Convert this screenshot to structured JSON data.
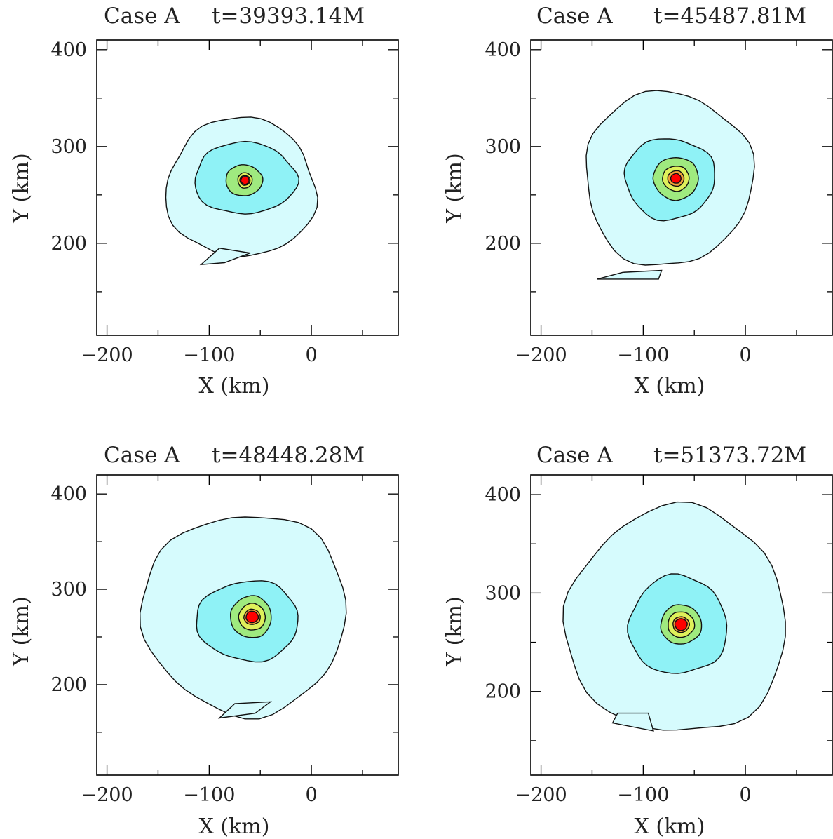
{
  "colors": {
    "level1": "#d6fbfd",
    "level2": "#8ff2f6",
    "level3": "#9fea7f",
    "level4": "#dff05a",
    "level5": "#f0a13a",
    "core": "#ff0000",
    "contour_line": "#111111"
  },
  "chart_data": [
    {
      "type": "contour",
      "panel": "top-left",
      "title_case": "Case A",
      "title_time": "t=39393.14M",
      "xlabel": "X (km)",
      "ylabel": "Y (km)",
      "xlim": [
        -210,
        85
      ],
      "ylim": [
        105,
        410
      ],
      "xticks": [
        -200,
        -100,
        0
      ],
      "yticks": [
        200,
        300,
        400
      ],
      "center": [
        -65,
        265
      ],
      "layers": [
        {
          "level": 1,
          "rx": 73,
          "ry": 72,
          "dx": -4,
          "dy": -8
        },
        {
          "level": 2,
          "rx": 50,
          "ry": 37,
          "dx": 0,
          "dy": 2
        },
        {
          "level": 3,
          "rx": 18,
          "ry": 16,
          "dx": -1,
          "dy": 0
        },
        {
          "level": 4,
          "rx": 7,
          "ry": 8,
          "dx": 0,
          "dy": 0
        },
        {
          "level": 5,
          "rx": 5,
          "ry": 5,
          "dx": 0,
          "dy": 0
        },
        {
          "level": 6,
          "rx": 4,
          "ry": 4,
          "dx": 0,
          "dy": 0
        }
      ],
      "tail": [
        [
          -108,
          178
        ],
        [
          -85,
          180
        ],
        [
          -60,
          190
        ],
        [
          -90,
          195
        ]
      ]
    },
    {
      "type": "contour",
      "panel": "top-right",
      "title_case": "Case A",
      "title_time": "t=45487.81M",
      "xlabel": "X (km)",
      "ylabel": "Y (km)",
      "xlim": [
        -210,
        85
      ],
      "ylim": [
        105,
        410
      ],
      "xticks": [
        -200,
        -100,
        0
      ],
      "yticks": [
        200,
        300,
        400
      ],
      "center": [
        -68,
        267
      ],
      "layers": [
        {
          "level": 1,
          "rx": 82,
          "ry": 90,
          "dx": -8,
          "dy": 0
        },
        {
          "level": 2,
          "rx": 44,
          "ry": 42,
          "dx": -6,
          "dy": 0
        },
        {
          "level": 3,
          "rx": 22,
          "ry": 22,
          "dx": 0,
          "dy": 0
        },
        {
          "level": 4,
          "rx": 13,
          "ry": 13,
          "dx": 0,
          "dy": 0
        },
        {
          "level": 5,
          "rx": 8,
          "ry": 8,
          "dx": 0,
          "dy": 0
        },
        {
          "level": 6,
          "rx": 5,
          "ry": 5,
          "dx": 0,
          "dy": 0
        }
      ],
      "tail": [
        [
          -145,
          163
        ],
        [
          -85,
          163
        ],
        [
          -82,
          172
        ],
        [
          -120,
          170
        ]
      ]
    },
    {
      "type": "contour",
      "panel": "bottom-left",
      "title_case": "Case A",
      "title_time": "t=48448.28M",
      "xlabel": "X (km)",
      "ylabel": "Y (km)",
      "xlim": [
        -210,
        85
      ],
      "ylim": [
        105,
        420
      ],
      "xticks": [
        -200,
        -100,
        0
      ],
      "yticks": [
        200,
        300,
        400
      ],
      "center": [
        -58,
        271
      ],
      "layers": [
        {
          "level": 1,
          "rx": 100,
          "ry": 105,
          "dx": -7,
          "dy": 4
        },
        {
          "level": 2,
          "rx": 50,
          "ry": 42,
          "dx": -4,
          "dy": -4
        },
        {
          "level": 3,
          "rx": 20,
          "ry": 22,
          "dx": -1,
          "dy": 0
        },
        {
          "level": 4,
          "rx": 13,
          "ry": 14,
          "dx": 0,
          "dy": 0
        },
        {
          "level": 5,
          "rx": 8,
          "ry": 8,
          "dx": 0,
          "dy": 0
        },
        {
          "level": 6,
          "rx": 6,
          "ry": 6,
          "dx": 0,
          "dy": 0
        }
      ],
      "tail": [
        [
          -90,
          165
        ],
        [
          -55,
          170
        ],
        [
          -40,
          182
        ],
        [
          -75,
          180
        ]
      ]
    },
    {
      "type": "contour",
      "panel": "bottom-right",
      "title_case": "Case A",
      "title_time": "t=51373.72M",
      "xlabel": "X (km)",
      "ylabel": "Y (km)",
      "xlim": [
        -210,
        85
      ],
      "ylim": [
        115,
        420
      ],
      "xticks": [
        -200,
        -100,
        0
      ],
      "yticks": [
        200,
        300,
        400
      ],
      "center": [
        -63,
        268
      ],
      "layers": [
        {
          "level": 1,
          "rx": 108,
          "ry": 115,
          "dx": -4,
          "dy": 3
        },
        {
          "level": 2,
          "rx": 48,
          "ry": 50,
          "dx": -3,
          "dy": -1
        },
        {
          "level": 3,
          "rx": 20,
          "ry": 20,
          "dx": 0,
          "dy": 0
        },
        {
          "level": 4,
          "rx": 13,
          "ry": 13,
          "dx": 0,
          "dy": 0
        },
        {
          "level": 5,
          "rx": 8,
          "ry": 8,
          "dx": 0,
          "dy": 0
        },
        {
          "level": 6,
          "rx": 6,
          "ry": 6,
          "dx": 0,
          "dy": 0
        }
      ],
      "tail": [
        [
          -130,
          168
        ],
        [
          -90,
          160
        ],
        [
          -95,
          178
        ],
        [
          -125,
          178
        ]
      ]
    }
  ]
}
